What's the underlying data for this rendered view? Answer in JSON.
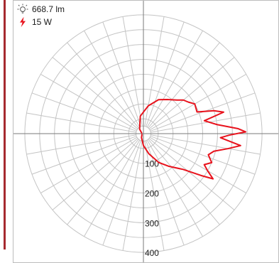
{
  "colors": {
    "left_accent": "#a62a2f",
    "grid": "#c4c4c4",
    "axis": "#7a7a7a",
    "series": "#e8121c",
    "text": "#1a1a1a"
  },
  "legend": {
    "flux_icon": "lightbulb-icon",
    "flux_value": "668.7 lm",
    "power_icon": "lightning-bolt-icon",
    "power_value": "15 W"
  },
  "chart_data": {
    "type": "polar-line",
    "radial_ticks": [
      "100",
      "200",
      "300",
      "400"
    ],
    "rmax": 400,
    "angle_step_deg": 10,
    "grid": true,
    "legend_position": "top-left",
    "series": [
      {
        "color": "#e8121c",
        "points": [
          {
            "angle": 175,
            "r": 5
          },
          {
            "angle": 130,
            "r": 20
          },
          {
            "angle": 100,
            "r": 60
          },
          {
            "angle": 80,
            "r": 95
          },
          {
            "angle": 66,
            "r": 125
          },
          {
            "angle": 55,
            "r": 140
          },
          {
            "angle": 45,
            "r": 160
          },
          {
            "angle": 40,
            "r": 176
          },
          {
            "angle": 35,
            "r": 185
          },
          {
            "angle": 30,
            "r": 200
          },
          {
            "angle": 22,
            "r": 195
          },
          {
            "angle": 18,
            "r": 250
          },
          {
            "angle": 15,
            "r": 280
          },
          {
            "angle": 12,
            "r": 210
          },
          {
            "angle": 7,
            "r": 250
          },
          {
            "angle": 3,
            "r": 320
          },
          {
            "angle": 1,
            "r": 345
          },
          {
            "angle": -1,
            "r": 290
          },
          {
            "angle": -3,
            "r": 260
          },
          {
            "angle": -7,
            "r": 330
          },
          {
            "angle": -10,
            "r": 290
          },
          {
            "angle": -14,
            "r": 245
          },
          {
            "angle": -18,
            "r": 230
          },
          {
            "angle": -23,
            "r": 250
          },
          {
            "angle": -27,
            "r": 230
          },
          {
            "angle": -30,
            "r": 250
          },
          {
            "angle": -33,
            "r": 280
          },
          {
            "angle": -36,
            "r": 240
          },
          {
            "angle": -42,
            "r": 180
          },
          {
            "angle": -52,
            "r": 140
          },
          {
            "angle": -62,
            "r": 110
          },
          {
            "angle": -75,
            "r": 70
          },
          {
            "angle": -90,
            "r": 40
          },
          {
            "angle": -115,
            "r": 15
          },
          {
            "angle": -160,
            "r": 5
          }
        ]
      }
    ]
  }
}
